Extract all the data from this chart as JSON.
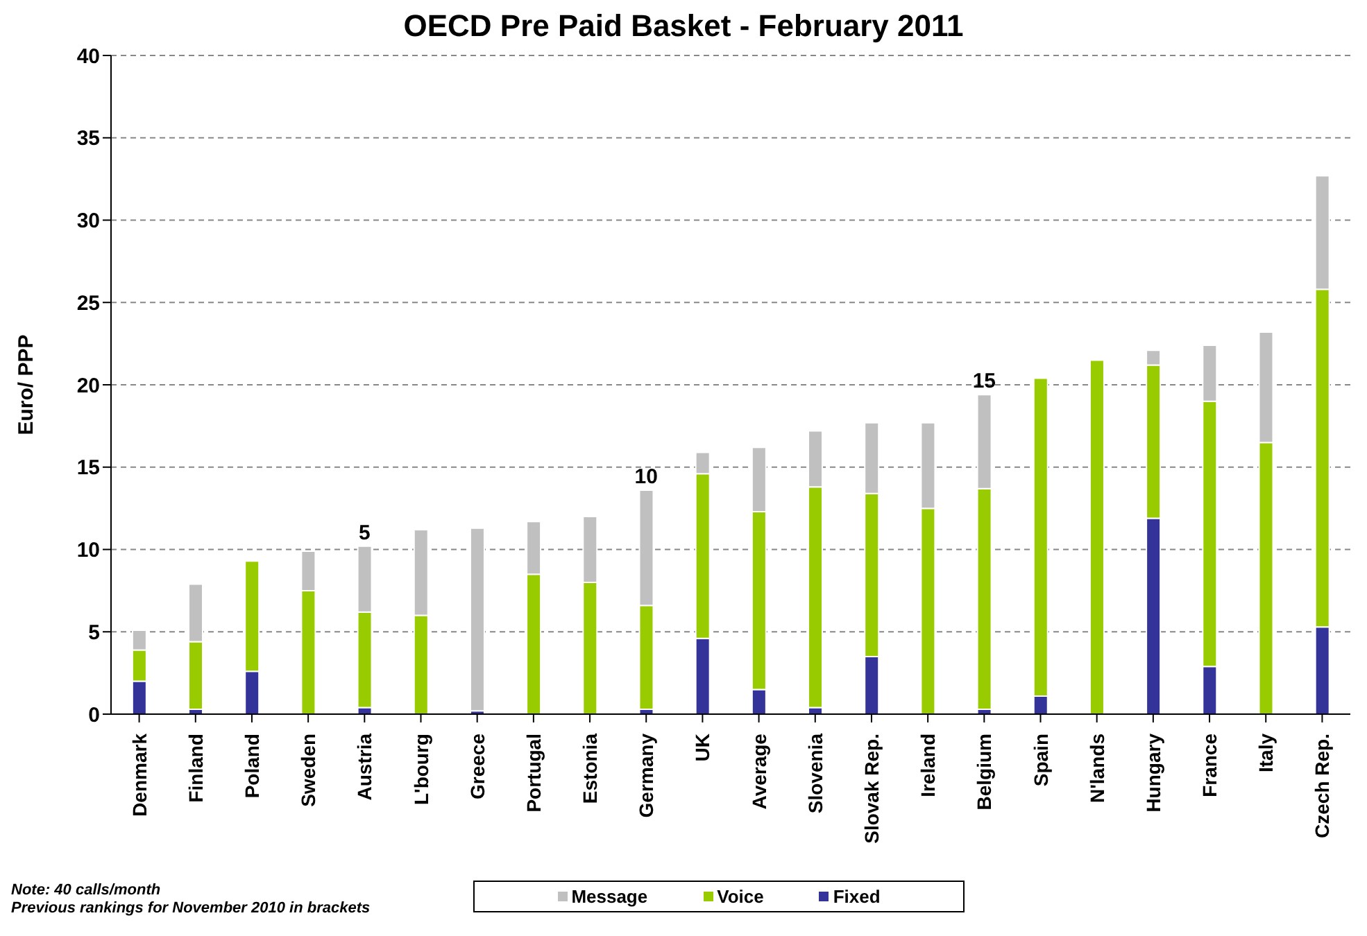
{
  "chart_data": {
    "type": "bar",
    "title": "OECD Pre Paid Basket - February 2011",
    "ylabel": "Euro/ PPP",
    "categories": [
      "Denmark",
      "Finland",
      "Poland",
      "Sweden",
      "Austria",
      "L'bourg",
      "Greece",
      "Portugal",
      "Estonia",
      "Germany",
      "UK",
      "Average",
      "Slovenia",
      "Slovak Rep.",
      "Ireland",
      "Belgium",
      "Spain",
      "N'lands",
      "Hungary",
      "France",
      "Italy",
      "Czech Rep."
    ],
    "stacked": true,
    "series": [
      {
        "name": "Fixed",
        "color": "#333399",
        "values": [
          2.0,
          0.3,
          2.6,
          0,
          0.4,
          0,
          0.2,
          0,
          0,
          0.3,
          4.6,
          1.5,
          0.4,
          3.5,
          0,
          0.3,
          1.1,
          0,
          11.9,
          2.9,
          0,
          5.3
        ]
      },
      {
        "name": "Voice",
        "color": "#99cc00",
        "values": [
          1.9,
          4.1,
          6.7,
          7.5,
          5.8,
          6.0,
          0,
          8.5,
          8.0,
          6.3,
          10.0,
          10.8,
          13.4,
          9.9,
          12.5,
          13.4,
          19.3,
          21.5,
          9.3,
          16.1,
          16.5,
          20.5
        ]
      },
      {
        "name": "Message",
        "color": "#c0c0c0",
        "values": [
          1.2,
          3.5,
          0,
          2.4,
          4.0,
          5.2,
          11.1,
          3.2,
          4.0,
          7.0,
          1.3,
          3.9,
          3.4,
          4.3,
          5.2,
          5.7,
          0,
          0,
          0.9,
          3.4,
          6.7,
          6.9
        ]
      }
    ],
    "ylim": [
      0,
      40
    ],
    "yticks": [
      0,
      5,
      10,
      15,
      20,
      25,
      30,
      35,
      40
    ],
    "grid": "y",
    "legend": "bottom",
    "annotations": [
      {
        "text": "5",
        "x": "Austria",
        "y": 10.2
      },
      {
        "text": "10",
        "x": "Germany",
        "y": 13.6
      },
      {
        "text": "15",
        "x": "Belgium",
        "y": 19.4
      },
      "Note: 40 calls/month",
      "Previous rankings for November 2010 in brackets"
    ]
  }
}
